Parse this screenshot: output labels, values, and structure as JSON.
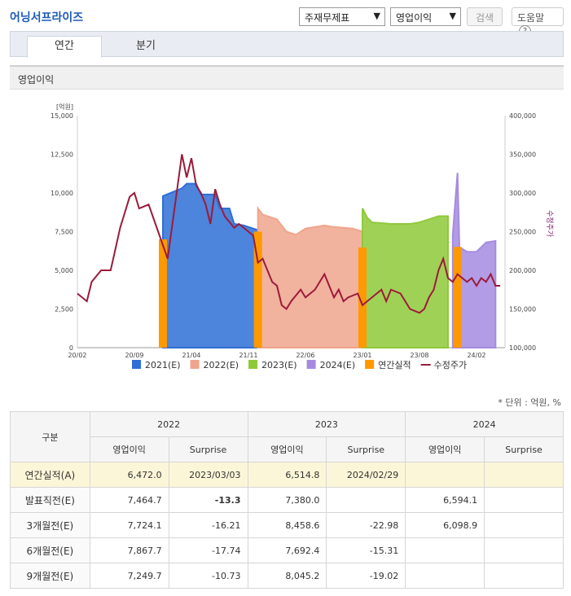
{
  "header": {
    "title": "어닝서프라이즈",
    "select1": "주재무제표",
    "select2": "영업이익",
    "search_label": "검색",
    "help_label": "도움말"
  },
  "tabs": [
    {
      "label": "연간"
    },
    {
      "label": "분기"
    }
  ],
  "section_title": "영업이익",
  "chart_data": {
    "type": "area",
    "y_unit_label": "[억원]",
    "y_left": {
      "min": 0,
      "max": 15000,
      "ticks": [
        "0",
        "2,500",
        "5,000",
        "7,500",
        "10,000",
        "12,500",
        "15,000"
      ]
    },
    "y_right": {
      "label": "수정주가",
      "min": 100000,
      "max": 400000,
      "ticks": [
        "100,000",
        "150,000",
        "200,000",
        "250,000",
        "300,000",
        "350,000",
        "400,000"
      ]
    },
    "x_ticks": [
      "20/02",
      "20/09",
      "21/04",
      "21/11",
      "22/06",
      "23/01",
      "23/08",
      "24/02"
    ],
    "series": [
      {
        "name": "2021(E)",
        "color": "#2e6fd6"
      },
      {
        "name": "2022(E)",
        "color": "#efa58d"
      },
      {
        "name": "2023(E)",
        "color": "#8fc93a"
      },
      {
        "name": "2024(E)",
        "color": "#a58be0"
      },
      {
        "name": "연간실적",
        "color": "#ff9900"
      },
      {
        "name": "수정주가",
        "color": "#9b1b3a"
      }
    ],
    "estimates": [
      {
        "series": "2021(E)",
        "points": [
          [
            2021.0,
            9800
          ],
          [
            2021.2,
            10300
          ],
          [
            2021.25,
            10600
          ],
          [
            2021.35,
            10600
          ],
          [
            2021.4,
            9900
          ],
          [
            2021.55,
            9900
          ],
          [
            2021.6,
            9000
          ],
          [
            2021.7,
            9000
          ],
          [
            2021.75,
            8000
          ],
          [
            2021.85,
            7900
          ],
          [
            2021.95,
            7700
          ],
          [
            2022.0,
            7600
          ]
        ]
      },
      {
        "series": "2022(E)",
        "points": [
          [
            2022.0,
            9000
          ],
          [
            2022.05,
            8600
          ],
          [
            2022.2,
            8300
          ],
          [
            2022.3,
            7500
          ],
          [
            2022.4,
            7300
          ],
          [
            2022.5,
            7700
          ],
          [
            2022.7,
            7900
          ],
          [
            2022.8,
            7800
          ],
          [
            2023.0,
            7700
          ],
          [
            2023.1,
            7500
          ]
        ]
      },
      {
        "series": "2023(E)",
        "points": [
          [
            2023.1,
            9000
          ],
          [
            2023.15,
            8400
          ],
          [
            2023.2,
            8100
          ],
          [
            2023.4,
            8000
          ],
          [
            2023.6,
            8000
          ],
          [
            2023.7,
            8100
          ],
          [
            2023.8,
            8300
          ],
          [
            2023.9,
            8500
          ],
          [
            2024.0,
            8500
          ]
        ]
      },
      {
        "series": "2024(E)",
        "points": [
          [
            2024.05,
            7300
          ],
          [
            2024.1,
            11300
          ],
          [
            2024.12,
            6500
          ],
          [
            2024.2,
            6200
          ],
          [
            2024.3,
            6200
          ],
          [
            2024.4,
            6800
          ],
          [
            2024.5,
            6900
          ]
        ]
      }
    ],
    "actuals": [
      {
        "x": 2021.0,
        "value": 7000
      },
      {
        "x": 2022.0,
        "value": 7500
      },
      {
        "x": 2023.1,
        "value": 6472
      },
      {
        "x": 2024.1,
        "value": 6515
      }
    ],
    "price": [
      [
        2020.1,
        170000
      ],
      [
        2020.15,
        165000
      ],
      [
        2020.2,
        160000
      ],
      [
        2020.25,
        185000
      ],
      [
        2020.35,
        200000
      ],
      [
        2020.45,
        200000
      ],
      [
        2020.55,
        255000
      ],
      [
        2020.65,
        295000
      ],
      [
        2020.7,
        300000
      ],
      [
        2020.75,
        280000
      ],
      [
        2020.85,
        285000
      ],
      [
        2020.95,
        250000
      ],
      [
        2021.05,
        215000
      ],
      [
        2021.1,
        260000
      ],
      [
        2021.2,
        350000
      ],
      [
        2021.25,
        320000
      ],
      [
        2021.3,
        345000
      ],
      [
        2021.35,
        310000
      ],
      [
        2021.4,
        300000
      ],
      [
        2021.45,
        285000
      ],
      [
        2021.5,
        260000
      ],
      [
        2021.55,
        305000
      ],
      [
        2021.6,
        285000
      ],
      [
        2021.65,
        270000
      ],
      [
        2021.75,
        255000
      ],
      [
        2021.8,
        260000
      ],
      [
        2021.9,
        250000
      ],
      [
        2021.95,
        245000
      ],
      [
        2022.0,
        210000
      ],
      [
        2022.05,
        215000
      ],
      [
        2022.1,
        200000
      ],
      [
        2022.15,
        185000
      ],
      [
        2022.2,
        180000
      ],
      [
        2022.25,
        155000
      ],
      [
        2022.3,
        150000
      ],
      [
        2022.35,
        160000
      ],
      [
        2022.45,
        175000
      ],
      [
        2022.5,
        165000
      ],
      [
        2022.6,
        175000
      ],
      [
        2022.7,
        195000
      ],
      [
        2022.75,
        180000
      ],
      [
        2022.8,
        165000
      ],
      [
        2022.85,
        175000
      ],
      [
        2022.9,
        160000
      ],
      [
        2022.95,
        165000
      ],
      [
        2023.05,
        170000
      ],
      [
        2023.1,
        155000
      ],
      [
        2023.2,
        165000
      ],
      [
        2023.3,
        175000
      ],
      [
        2023.35,
        160000
      ],
      [
        2023.4,
        175000
      ],
      [
        2023.5,
        170000
      ],
      [
        2023.55,
        160000
      ],
      [
        2023.6,
        150000
      ],
      [
        2023.7,
        145000
      ],
      [
        2023.75,
        150000
      ],
      [
        2023.8,
        165000
      ],
      [
        2023.85,
        175000
      ],
      [
        2023.9,
        200000
      ],
      [
        2023.95,
        215000
      ],
      [
        2024.0,
        190000
      ],
      [
        2024.05,
        185000
      ],
      [
        2024.1,
        195000
      ],
      [
        2024.2,
        185000
      ],
      [
        2024.25,
        190000
      ],
      [
        2024.3,
        180000
      ],
      [
        2024.35,
        190000
      ],
      [
        2024.4,
        185000
      ],
      [
        2024.45,
        195000
      ],
      [
        2024.5,
        180000
      ],
      [
        2024.55,
        180000
      ]
    ]
  },
  "unit_text": "* 단위 : 억원, %",
  "table": {
    "col_group": "구분",
    "years": [
      "2022",
      "2023",
      "2024"
    ],
    "sub_headers": [
      "영업이익",
      "Surprise",
      "영업이익",
      "Surprise",
      "영업이익",
      "Surprise"
    ],
    "rows": [
      {
        "label": "연간실적(A)",
        "cells": [
          "6,472.0",
          "2023/03/03",
          "6,514.8",
          "2024/02/29",
          "",
          ""
        ]
      },
      {
        "label": "발표직전(E)",
        "cells": [
          "7,464.7",
          "-13.3",
          "7,380.0",
          "",
          "6,594.1",
          ""
        ]
      },
      {
        "label": "3개월전(E)",
        "cells": [
          "7,724.1",
          "-16.21",
          "8,458.6",
          "-22.98",
          "6,098.9",
          ""
        ]
      },
      {
        "label": "6개월전(E)",
        "cells": [
          "7,867.7",
          "-17.74",
          "7,692.4",
          "-15.31",
          "",
          ""
        ]
      },
      {
        "label": "9개월전(E)",
        "cells": [
          "7,249.7",
          "-10.73",
          "8,045.2",
          "-19.02",
          "",
          ""
        ]
      }
    ]
  }
}
